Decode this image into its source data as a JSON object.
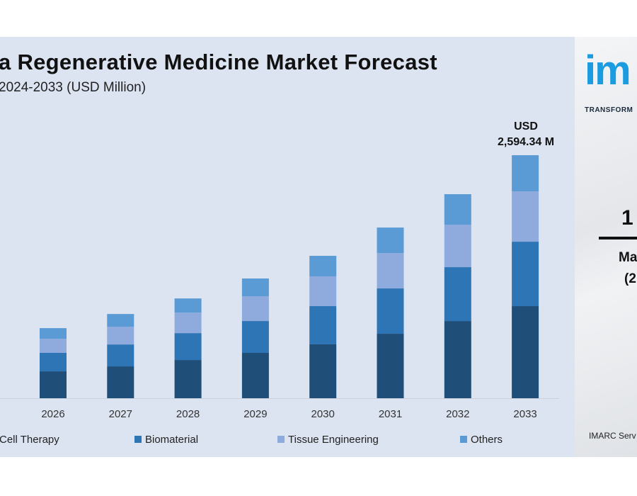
{
  "chart_data": {
    "type": "bar",
    "stacked": true,
    "title": "a Regenerative Medicine Market Forecast",
    "subtitle": "2024-2033 (USD Million)",
    "xlabel": "",
    "ylabel": "",
    "categories": [
      "2026",
      "2027",
      "2028",
      "2029",
      "2030",
      "2031",
      "2032",
      "2033"
    ],
    "series": [
      {
        "name": "Cell Therapy",
        "color": "#1f4e79",
        "values": [
          287,
          340,
          408,
          484,
          575,
          688,
          824,
          983
        ]
      },
      {
        "name": "Biomaterial",
        "color": "#2e75b6",
        "values": [
          197,
          234,
          287,
          340,
          408,
          484,
          575,
          688
        ]
      },
      {
        "name": "Tissue Engineering",
        "color": "#8faadc",
        "values": [
          151,
          189,
          219,
          265,
          318,
          378,
          454,
          537
        ]
      },
      {
        "name": "Others",
        "color": "#5b9bd5",
        "values": [
          113,
          136,
          151,
          189,
          219,
          272,
          325,
          386
        ]
      }
    ],
    "ylim": [
      0,
      2594.34
    ],
    "grid": false,
    "legend": "bottom",
    "annotation": {
      "line1": "USD",
      "line2": "2,594.34 M"
    }
  },
  "side_panel": {
    "logo_text": "im",
    "tagline": "TRANSFORM",
    "stat": "1",
    "stat_label_1": "Ma",
    "stat_label_2": "(2",
    "source": "IMARC Serv"
  }
}
